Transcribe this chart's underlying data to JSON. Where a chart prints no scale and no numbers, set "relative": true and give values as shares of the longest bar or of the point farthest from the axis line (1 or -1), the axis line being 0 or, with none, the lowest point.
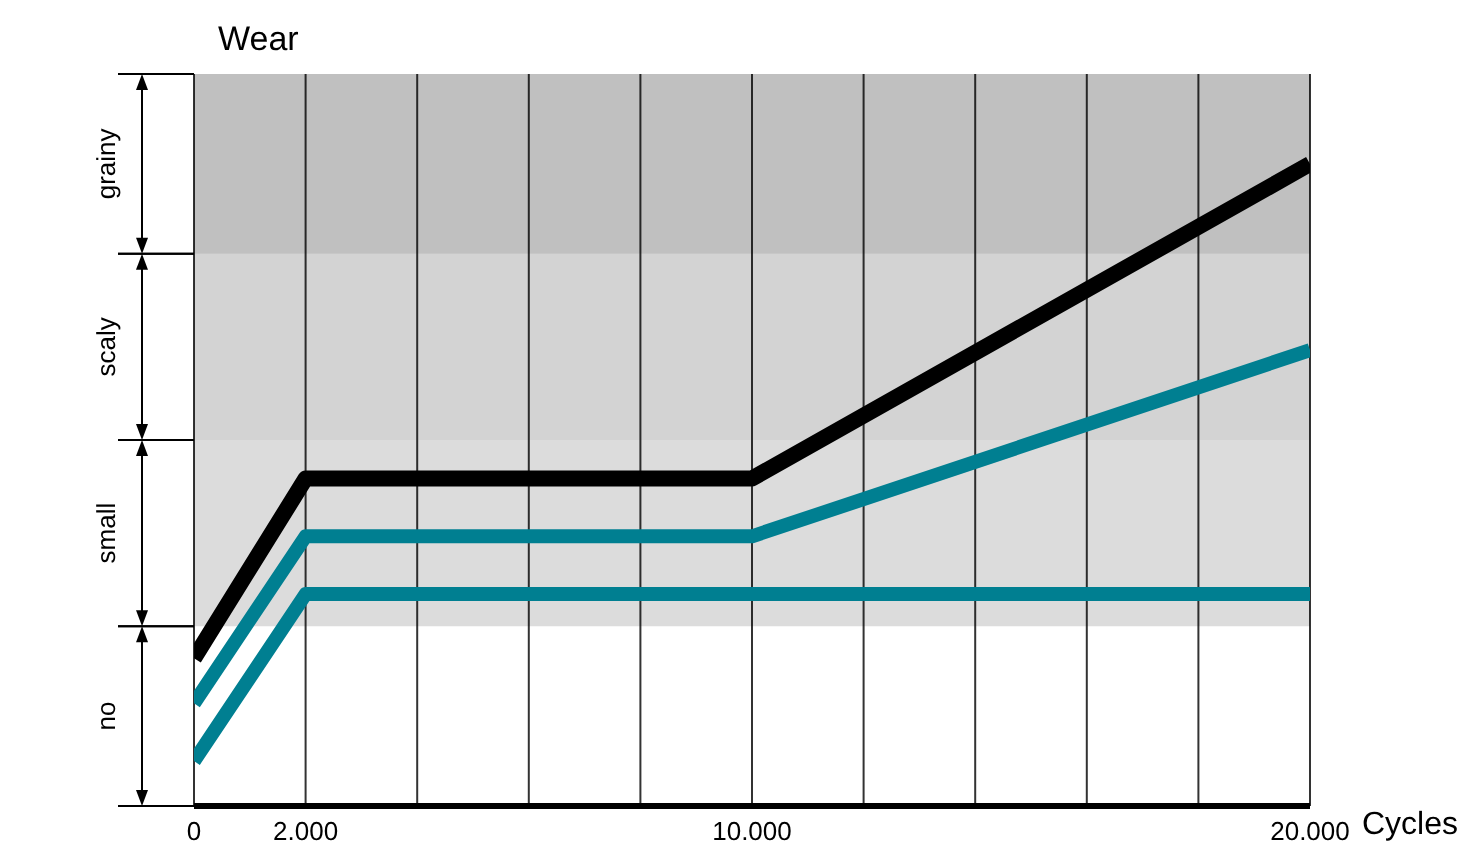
{
  "chart_data": {
    "type": "line",
    "title": "Wear",
    "xlabel": "Cycles",
    "relative": true,
    "x": [
      0,
      2000,
      10000,
      20000
    ],
    "xlim": [
      0,
      20000
    ],
    "xticks": [
      0,
      {
        "value": 2000,
        "label": "2.000"
      },
      {
        "value": 4000,
        "label": null
      },
      {
        "value": 6000,
        "label": null
      },
      {
        "value": 8000,
        "label": null
      },
      {
        "value": 10000,
        "label": "10.000"
      },
      {
        "value": 12000,
        "label": null
      },
      {
        "value": 14000,
        "label": null
      },
      {
        "value": 16000,
        "label": null
      },
      {
        "value": 18000,
        "label": null
      },
      {
        "value": 20000,
        "label": "20.000"
      }
    ],
    "series": [
      {
        "color": "#000000",
        "values": [
          0.23,
          0.51,
          0.51,
          1
        ]
      },
      {
        "color": "#007f91",
        "values": [
          0.16,
          0.42,
          0.42,
          0.71
        ]
      },
      {
        "color": "#007f91",
        "values": [
          0.07,
          0.33,
          0.33,
          0.33
        ]
      }
    ],
    "bands": [
      {
        "axis": "y",
        "from": 0.28,
        "to": 0.57,
        "label": "small",
        "color": "#dcdcdc"
      },
      {
        "axis": "y",
        "from": 0.57,
        "to": 0.86,
        "label": "scaly",
        "color": "#d3d3d3"
      },
      {
        "axis": "y",
        "from": 0.86,
        "to": 1.14,
        "label": "grainy",
        "color": "#c0c0c0"
      }
    ],
    "annotations": [
      "no"
    ],
    "grid": "x"
  }
}
